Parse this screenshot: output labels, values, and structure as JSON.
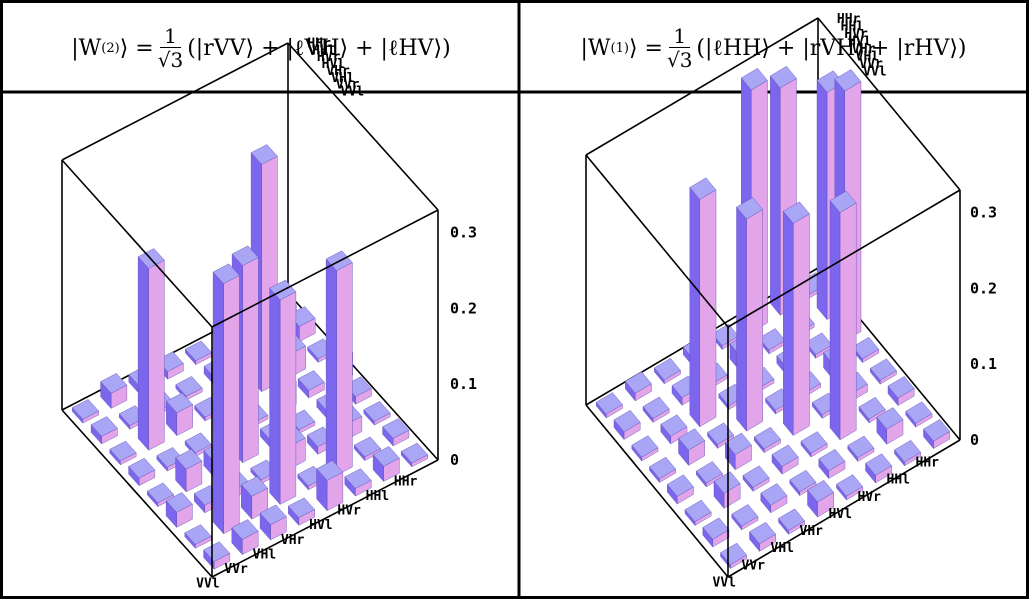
{
  "panels": [
    {
      "title": {
        "left": "|W",
        "sup": "(2)",
        "right_of_sup": "⟩ =",
        "frac_num": "1",
        "frac_den": "√3",
        "terms": "(|rVV⟩ + |ℓVH⟩ + |ℓHV⟩)"
      }
    },
    {
      "title": {
        "left": "|W",
        "sup": "(1)",
        "right_of_sup": "⟩ =",
        "frac_num": "1",
        "frac_den": "√3",
        "terms": "(|ℓHH⟩ + |rVH⟩ + |rHV⟩)"
      }
    }
  ],
  "colors": {
    "bar_top": "#a9a7f5",
    "bar_left": "#7d66ee",
    "bar_right": "#e2a5ea",
    "line": "#000000"
  },
  "chart_data": [
    {
      "type": "bar3d",
      "axis_labels": [
        "VVl",
        "VVr",
        "VHl",
        "VHr",
        "HVl",
        "HVr",
        "HHl",
        "HHr"
      ],
      "zticks": [
        "0",
        "0.1",
        "0.2",
        "0.3"
      ],
      "zlim": [
        0,
        0.33
      ],
      "values": [
        [
          0.01,
          0.0,
          0.02,
          0.0,
          0.01,
          0.0,
          0.01,
          0.0
        ],
        [
          0.02,
          0.33,
          0.01,
          0.03,
          0.0,
          0.24,
          0.0,
          0.02
        ],
        [
          0.02,
          0.03,
          0.01,
          0.02,
          0.0,
          0.03,
          0.0,
          0.01
        ],
        [
          0.01,
          0.27,
          0.0,
          0.26,
          0.02,
          0.0,
          0.0,
          0.01
        ],
        [
          0.04,
          0.0,
          0.03,
          0.01,
          0.0,
          0.0,
          0.01,
          0.0
        ],
        [
          0.01,
          0.27,
          0.01,
          0.0,
          0.03,
          0.3,
          0.02,
          0.01
        ],
        [
          0.02,
          0.0,
          0.02,
          0.01,
          0.01,
          0.03,
          0.0,
          0.0
        ],
        [
          0.0,
          0.01,
          0.0,
          0.01,
          0.03,
          0.0,
          0.02,
          0.01
        ]
      ]
    },
    {
      "type": "bar3d",
      "axis_labels": [
        "VVl",
        "VVr",
        "VHl",
        "VHr",
        "HVl",
        "HVr",
        "HHl",
        "HHr"
      ],
      "zticks": [
        "0",
        "0.1",
        "0.2",
        "0.3"
      ],
      "zlim": [
        0,
        0.33
      ],
      "values": [
        [
          0.0,
          0.01,
          0.0,
          0.01,
          0.0,
          0.0,
          0.01,
          0.0
        ],
        [
          0.01,
          0.0,
          0.02,
          0.0,
          0.02,
          0.01,
          0.0,
          0.01
        ],
        [
          0.0,
          0.01,
          0.0,
          0.02,
          0.0,
          0.3,
          0.01,
          0.0
        ],
        [
          0.02,
          0.0,
          0.01,
          0.0,
          0.28,
          0.0,
          0.0,
          0.01
        ],
        [
          0.0,
          0.01,
          0.0,
          0.28,
          0.0,
          0.0,
          0.02,
          0.0
        ],
        [
          0.01,
          0.0,
          0.3,
          0.0,
          0.0,
          0.01,
          0.0,
          0.32
        ],
        [
          0.0,
          0.02,
          0.0,
          0.01,
          0.02,
          0.0,
          0.0,
          0.3
        ],
        [
          0.01,
          0.0,
          0.01,
          0.0,
          0.0,
          0.33,
          0.3,
          0.0
        ]
      ]
    }
  ]
}
